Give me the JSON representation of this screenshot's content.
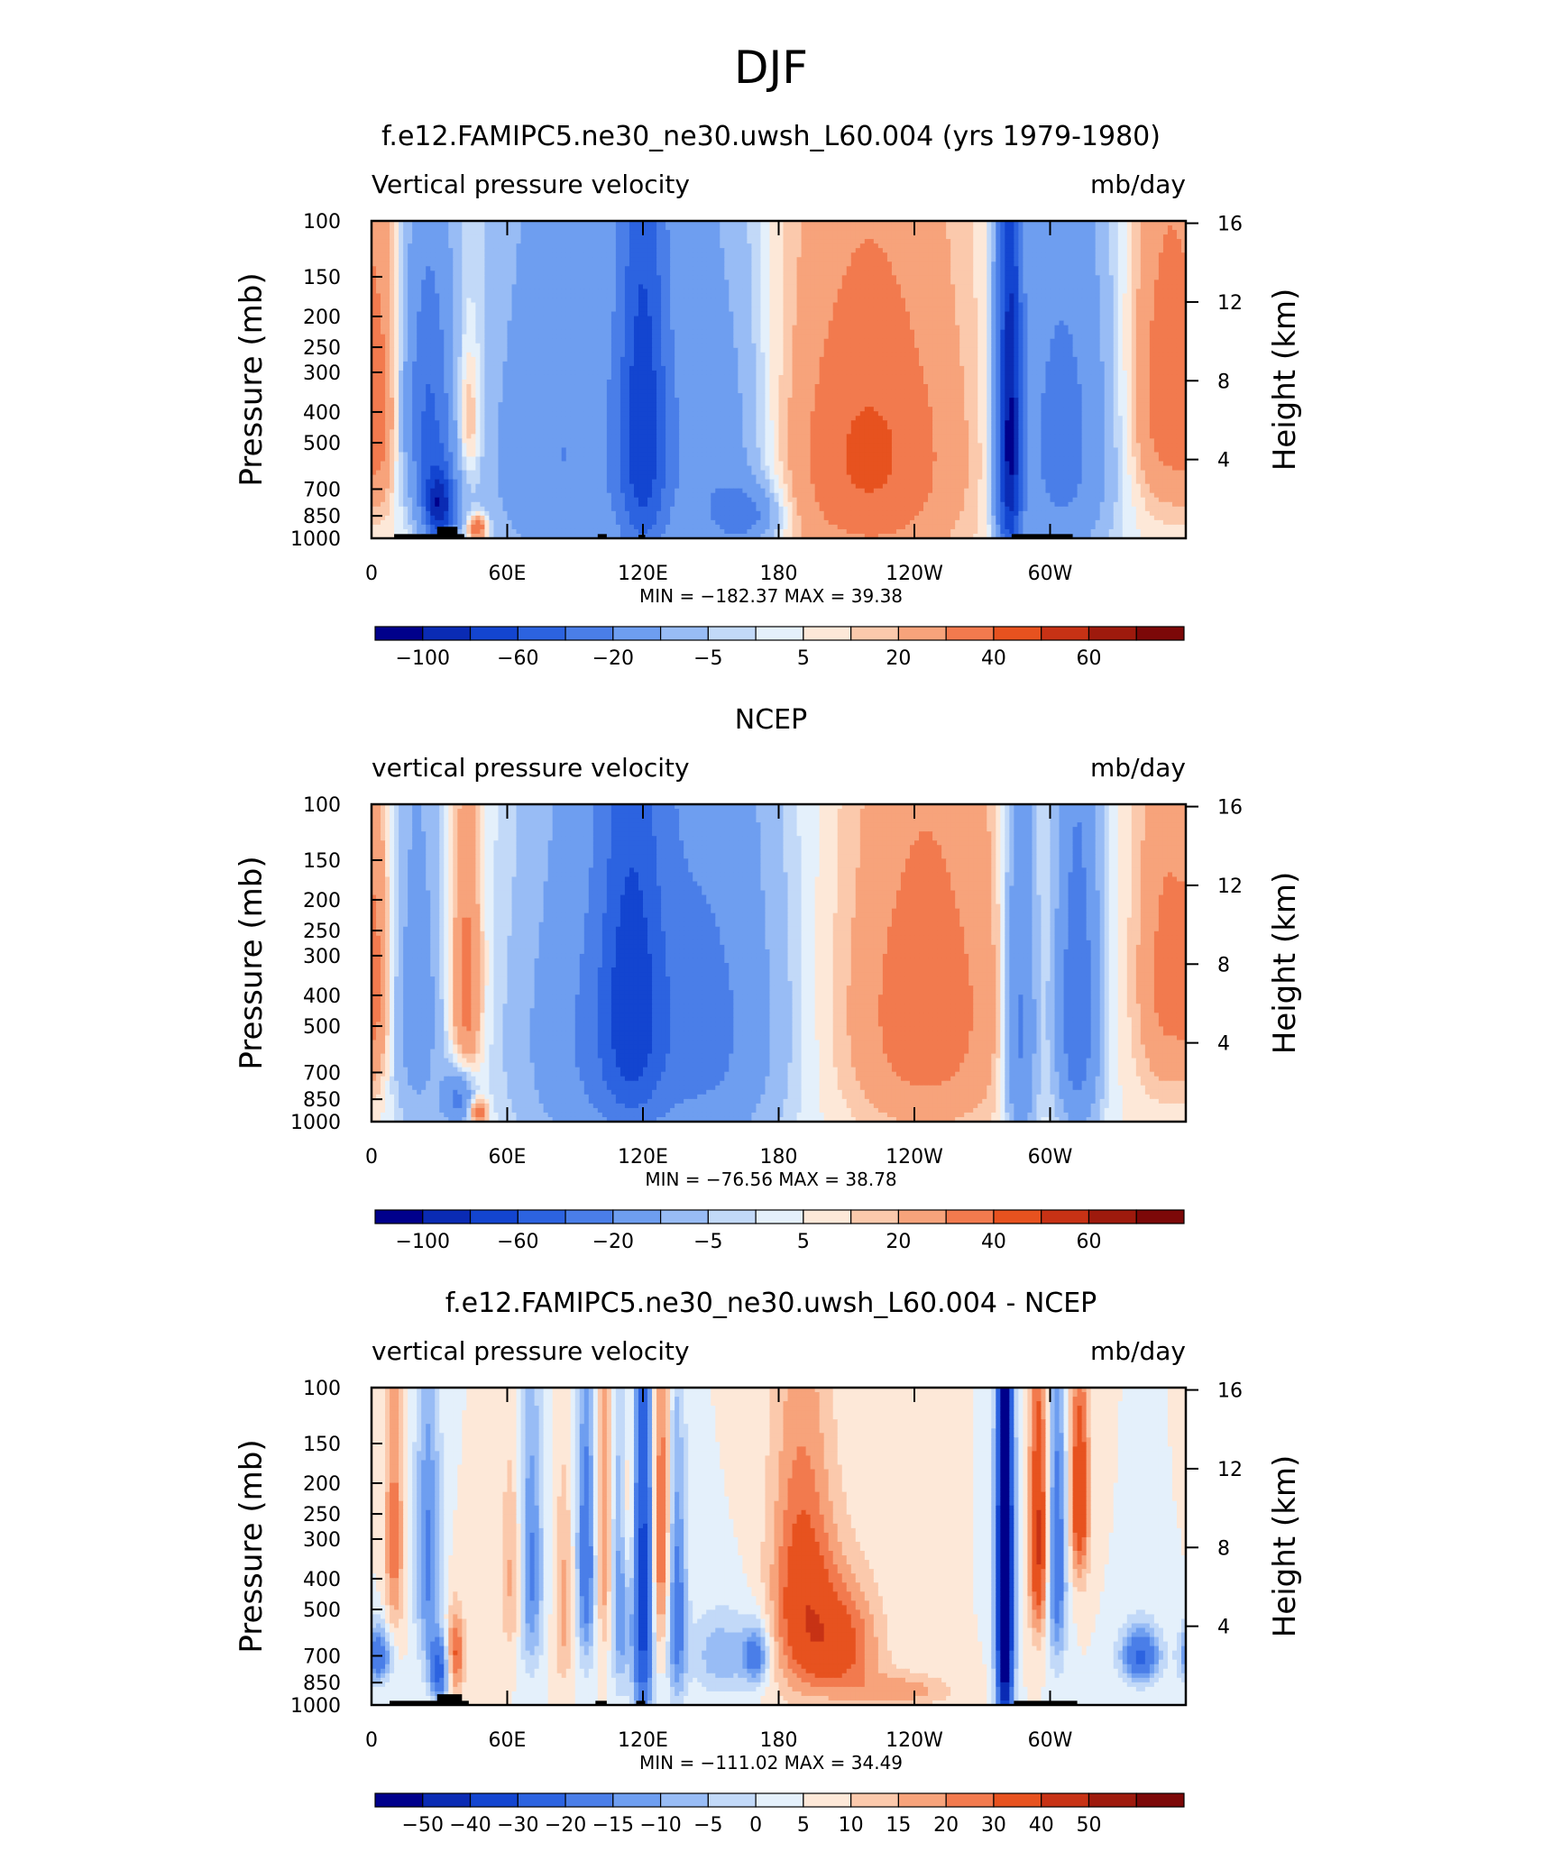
{
  "figure_title": "DJF",
  "chart_data": [
    {
      "type": "heatmap",
      "title": "f.e12.FAMIPC5.ne30_ne30.uwsh_L60.004 (yrs 1979-1980)",
      "left_subtitle": "Vertical pressure velocity",
      "right_subtitle": "mb/day",
      "ylabel": "Pressure (mb)",
      "ylabel_right": "Height (km)",
      "xlabel": "",
      "pressure_ticks": [
        100,
        150,
        200,
        250,
        300,
        400,
        500,
        700,
        850,
        1000
      ],
      "pressure_tick_labels": [
        "100",
        "150",
        "200",
        "250",
        "300",
        "400",
        "500",
        "700",
        "850",
        "1000"
      ],
      "height_ticks": [
        4,
        8,
        12,
        16
      ],
      "height_tick_labels": [
        "4",
        "8",
        "12",
        "16"
      ],
      "ylim": [
        1000,
        100
      ],
      "xlim": [
        0,
        360
      ],
      "lon_ticks": [
        0,
        60,
        120,
        180,
        240,
        300
      ],
      "lon_tick_labels": [
        "0",
        "60E",
        "120E",
        "180",
        "120W",
        "60W"
      ],
      "stats_label": "MIN = −182.37   MAX =   39.38",
      "min": -182.37,
      "max": 39.38,
      "colorbar_labels": [
        "−100",
        "−60",
        "−20",
        "−5",
        "5",
        "20",
        "40",
        "60"
      ],
      "colorbar_label_positions": [
        1,
        3,
        5,
        7,
        9,
        11,
        13,
        15
      ],
      "levels": [
        -120,
        -100,
        -80,
        -60,
        -40,
        -20,
        -10,
        -5,
        0,
        5,
        10,
        20,
        30,
        40,
        50,
        60
      ],
      "colors": [
        "#00008b",
        "#0a2bb4",
        "#1345d0",
        "#2c63e0",
        "#4a7ee8",
        "#6e9ef0",
        "#98bcf5",
        "#c2d9f8",
        "#e4f0fb",
        "#fde8d8",
        "#fbc9ac",
        "#f7a37b",
        "#f27a4e",
        "#e7521f",
        "#c73215",
        "#9e1a0d",
        "#7c0808"
      ],
      "features": [
        {
          "lon": 5,
          "p": 450,
          "amp": 12,
          "wlon": 5,
          "wp": 250
        },
        {
          "lon": 25,
          "p": 400,
          "amp": -60,
          "wlon": 8,
          "wp": 280
        },
        {
          "lon": 30,
          "p": 800,
          "amp": -100,
          "wlon": 5,
          "wp": 150
        },
        {
          "lon": 43,
          "p": 420,
          "amp": 22,
          "wlon": 4,
          "wp": 150
        },
        {
          "lon": 47,
          "p": 930,
          "amp": 40,
          "wlon": 3,
          "wp": 60
        },
        {
          "lon": 85,
          "p": 550,
          "amp": -40,
          "wlon": 25,
          "wp": 500
        },
        {
          "lon": 120,
          "p": 450,
          "amp": -75,
          "wlon": 8,
          "wp": 500
        },
        {
          "lon": 150,
          "p": 550,
          "amp": -35,
          "wlon": 18,
          "wp": 450
        },
        {
          "lon": 165,
          "p": 850,
          "amp": -40,
          "wlon": 10,
          "wp": 120
        },
        {
          "lon": 220,
          "p": 550,
          "amp": 32,
          "wlon": 30,
          "wp": 450
        },
        {
          "lon": 282,
          "p": 500,
          "amp": -115,
          "wlon": 4,
          "wp": 500
        },
        {
          "lon": 305,
          "p": 500,
          "amp": -50,
          "wlon": 15,
          "wp": 450
        },
        {
          "lon": 352,
          "p": 350,
          "amp": 28,
          "wlon": 12,
          "wp": 300
        }
      ],
      "topography": [
        {
          "lon_start": 10,
          "lon_end": 41,
          "p_top": 970
        },
        {
          "lon_start": 29,
          "lon_end": 38,
          "p_top": 920
        },
        {
          "lon_start": 100,
          "lon_end": 104,
          "p_top": 970
        },
        {
          "lon_start": 118,
          "lon_end": 121,
          "p_top": 975
        },
        {
          "lon_start": 283,
          "lon_end": 310,
          "p_top": 970
        }
      ]
    },
    {
      "type": "heatmap",
      "title": "NCEP",
      "left_subtitle": "vertical pressure velocity",
      "right_subtitle": "mb/day",
      "ylabel": "Pressure (mb)",
      "ylabel_right": "Height (km)",
      "xlabel": "",
      "pressure_ticks": [
        100,
        150,
        200,
        250,
        300,
        400,
        500,
        700,
        850,
        1000
      ],
      "pressure_tick_labels": [
        "100",
        "150",
        "200",
        "250",
        "300",
        "400",
        "500",
        "700",
        "850",
        "1000"
      ],
      "height_ticks": [
        4,
        8,
        12,
        16
      ],
      "height_tick_labels": [
        "4",
        "8",
        "12",
        "16"
      ],
      "ylim": [
        1000,
        100
      ],
      "xlim": [
        0,
        360
      ],
      "lon_ticks": [
        0,
        60,
        120,
        180,
        240,
        300
      ],
      "lon_tick_labels": [
        "0",
        "60E",
        "120E",
        "180",
        "120W",
        "60W"
      ],
      "stats_label": "MIN = −76.56   MAX =   38.78",
      "min": -76.56,
      "max": 38.78,
      "colorbar_labels": [
        "−100",
        "−60",
        "−20",
        "−5",
        "5",
        "20",
        "40",
        "60"
      ],
      "colorbar_label_positions": [
        1,
        3,
        5,
        7,
        9,
        11,
        13,
        15
      ],
      "levels": [
        -120,
        -100,
        -80,
        -60,
        -40,
        -20,
        -10,
        -5,
        0,
        5,
        10,
        20,
        30,
        40,
        50,
        60
      ],
      "colors": [
        "#00008b",
        "#0a2bb4",
        "#1345d0",
        "#2c63e0",
        "#4a7ee8",
        "#6e9ef0",
        "#98bcf5",
        "#c2d9f8",
        "#e4f0fb",
        "#fde8d8",
        "#fbc9ac",
        "#f7a37b",
        "#f27a4e",
        "#e7521f",
        "#c73215",
        "#9e1a0d",
        "#7c0808"
      ],
      "features": [
        {
          "lon": 3,
          "p": 400,
          "amp": 12,
          "wlon": 4,
          "wp": 250
        },
        {
          "lon": 20,
          "p": 450,
          "amp": -30,
          "wlon": 8,
          "wp": 400
        },
        {
          "lon": 38,
          "p": 850,
          "amp": -45,
          "wlon": 5,
          "wp": 120
        },
        {
          "lon": 42,
          "p": 380,
          "amp": 28,
          "wlon": 5,
          "wp": 250
        },
        {
          "lon": 47,
          "p": 930,
          "amp": 35,
          "wlon": 3,
          "wp": 60
        },
        {
          "lon": 100,
          "p": 550,
          "amp": -40,
          "wlon": 25,
          "wp": 500
        },
        {
          "lon": 115,
          "p": 400,
          "amp": -55,
          "wlon": 10,
          "wp": 400
        },
        {
          "lon": 150,
          "p": 500,
          "amp": -42,
          "wlon": 22,
          "wp": 500
        },
        {
          "lon": 245,
          "p": 450,
          "amp": 28,
          "wlon": 25,
          "wp": 400
        },
        {
          "lon": 287,
          "p": 500,
          "amp": -48,
          "wlon": 5,
          "wp": 450
        },
        {
          "lon": 312,
          "p": 450,
          "amp": -58,
          "wlon": 7,
          "wp": 400
        },
        {
          "lon": 352,
          "p": 350,
          "amp": 24,
          "wlon": 10,
          "wp": 300
        }
      ],
      "topography": []
    },
    {
      "type": "heatmap",
      "title": "f.e12.FAMIPC5.ne30_ne30.uwsh_L60.004 - NCEP",
      "left_subtitle": "vertical pressure velocity",
      "right_subtitle": "mb/day",
      "ylabel": "Pressure (mb)",
      "ylabel_right": "Height (km)",
      "xlabel": "",
      "pressure_ticks": [
        100,
        150,
        200,
        250,
        300,
        400,
        500,
        700,
        850,
        1000
      ],
      "pressure_tick_labels": [
        "100",
        "150",
        "200",
        "250",
        "300",
        "400",
        "500",
        "700",
        "850",
        "1000"
      ],
      "height_ticks": [
        4,
        8,
        12,
        16
      ],
      "height_tick_labels": [
        "4",
        "8",
        "12",
        "16"
      ],
      "ylim": [
        1000,
        100
      ],
      "xlim": [
        0,
        360
      ],
      "lon_ticks": [
        0,
        60,
        120,
        180,
        240,
        300
      ],
      "lon_tick_labels": [
        "0",
        "60E",
        "120E",
        "180",
        "120W",
        "60W"
      ],
      "stats_label": "MIN = −111.02   MAX =   34.49",
      "min": -111.02,
      "max": 34.49,
      "colorbar_labels": [
        "−50",
        "−40",
        "−30",
        "−20",
        "−15",
        "−10",
        "−5",
        "0",
        "5",
        "10",
        "15",
        "20",
        "30",
        "40",
        "50"
      ],
      "colorbar_label_positions": [
        1,
        2,
        3,
        4,
        5,
        6,
        7,
        8,
        9,
        10,
        11,
        12,
        13,
        14,
        15
      ],
      "levels": [
        -60,
        -50,
        -40,
        -30,
        -20,
        -15,
        -10,
        -5,
        0,
        5,
        10,
        15,
        20,
        30,
        40,
        50
      ],
      "colors": [
        "#00008b",
        "#0a2bb4",
        "#1345d0",
        "#2c63e0",
        "#4a7ee8",
        "#6e9ef0",
        "#98bcf5",
        "#c2d9f8",
        "#e4f0fb",
        "#fde8d8",
        "#fbc9ac",
        "#f7a37b",
        "#f27a4e",
        "#e7521f",
        "#c73215",
        "#9e1a0d",
        "#7c0808"
      ],
      "features": [
        {
          "lon": 3,
          "p": 700,
          "amp": -28,
          "wlon": 4,
          "wp": 100
        },
        {
          "lon": 10,
          "p": 300,
          "amp": 18,
          "wlon": 3,
          "wp": 200
        },
        {
          "lon": 25,
          "p": 350,
          "amp": -22,
          "wlon": 4,
          "wp": 250
        },
        {
          "lon": 30,
          "p": 780,
          "amp": -35,
          "wlon": 3,
          "wp": 120
        },
        {
          "lon": 37,
          "p": 700,
          "amp": 22,
          "wlon": 3,
          "wp": 150
        },
        {
          "lon": 63,
          "p": 400,
          "amp": 14,
          "wlon": 4,
          "wp": 200
        },
        {
          "lon": 70,
          "p": 380,
          "amp": -24,
          "wlon": 4,
          "wp": 250
        },
        {
          "lon": 85,
          "p": 500,
          "amp": 12,
          "wlon": 3,
          "wp": 250
        },
        {
          "lon": 95,
          "p": 350,
          "amp": -28,
          "wlon": 3,
          "wp": 250
        },
        {
          "lon": 103,
          "p": 300,
          "amp": 16,
          "wlon": 3,
          "wp": 250
        },
        {
          "lon": 110,
          "p": 400,
          "amp": -25,
          "wlon": 3,
          "wp": 300
        },
        {
          "lon": 113,
          "p": 250,
          "amp": 16,
          "wlon": 3,
          "wp": 150
        },
        {
          "lon": 120,
          "p": 450,
          "amp": -48,
          "wlon": 3,
          "wp": 450
        },
        {
          "lon": 128,
          "p": 300,
          "amp": 22,
          "wlon": 3,
          "wp": 250
        },
        {
          "lon": 135,
          "p": 500,
          "amp": -26,
          "wlon": 3,
          "wp": 300
        },
        {
          "lon": 155,
          "p": 700,
          "amp": -14,
          "wlon": 10,
          "wp": 150
        },
        {
          "lon": 170,
          "p": 700,
          "amp": -24,
          "wlon": 4,
          "wp": 100
        },
        {
          "lon": 190,
          "p": 450,
          "amp": 24,
          "wlon": 10,
          "wp": 300
        },
        {
          "lon": 208,
          "p": 650,
          "amp": 22,
          "wlon": 12,
          "wp": 200
        },
        {
          "lon": 235,
          "p": 900,
          "amp": 13,
          "wlon": 15,
          "wp": 80
        },
        {
          "lon": 280,
          "p": 450,
          "amp": -90,
          "wlon": 2.5,
          "wp": 500
        },
        {
          "lon": 295,
          "p": 300,
          "amp": 32,
          "wlon": 3,
          "wp": 200
        },
        {
          "lon": 303,
          "p": 350,
          "amp": -28,
          "wlon": 3,
          "wp": 250
        },
        {
          "lon": 313,
          "p": 220,
          "amp": 30,
          "wlon": 3,
          "wp": 120
        },
        {
          "lon": 340,
          "p": 700,
          "amp": -32,
          "wlon": 6,
          "wp": 100
        }
      ],
      "topography": [
        {
          "lon_start": 8,
          "lon_end": 43,
          "p_top": 970
        },
        {
          "lon_start": 29,
          "lon_end": 40,
          "p_top": 925
        },
        {
          "lon_start": 99,
          "lon_end": 104,
          "p_top": 970
        },
        {
          "lon_start": 117,
          "lon_end": 121,
          "p_top": 970
        },
        {
          "lon_start": 284,
          "lon_end": 312,
          "p_top": 970
        }
      ]
    }
  ]
}
